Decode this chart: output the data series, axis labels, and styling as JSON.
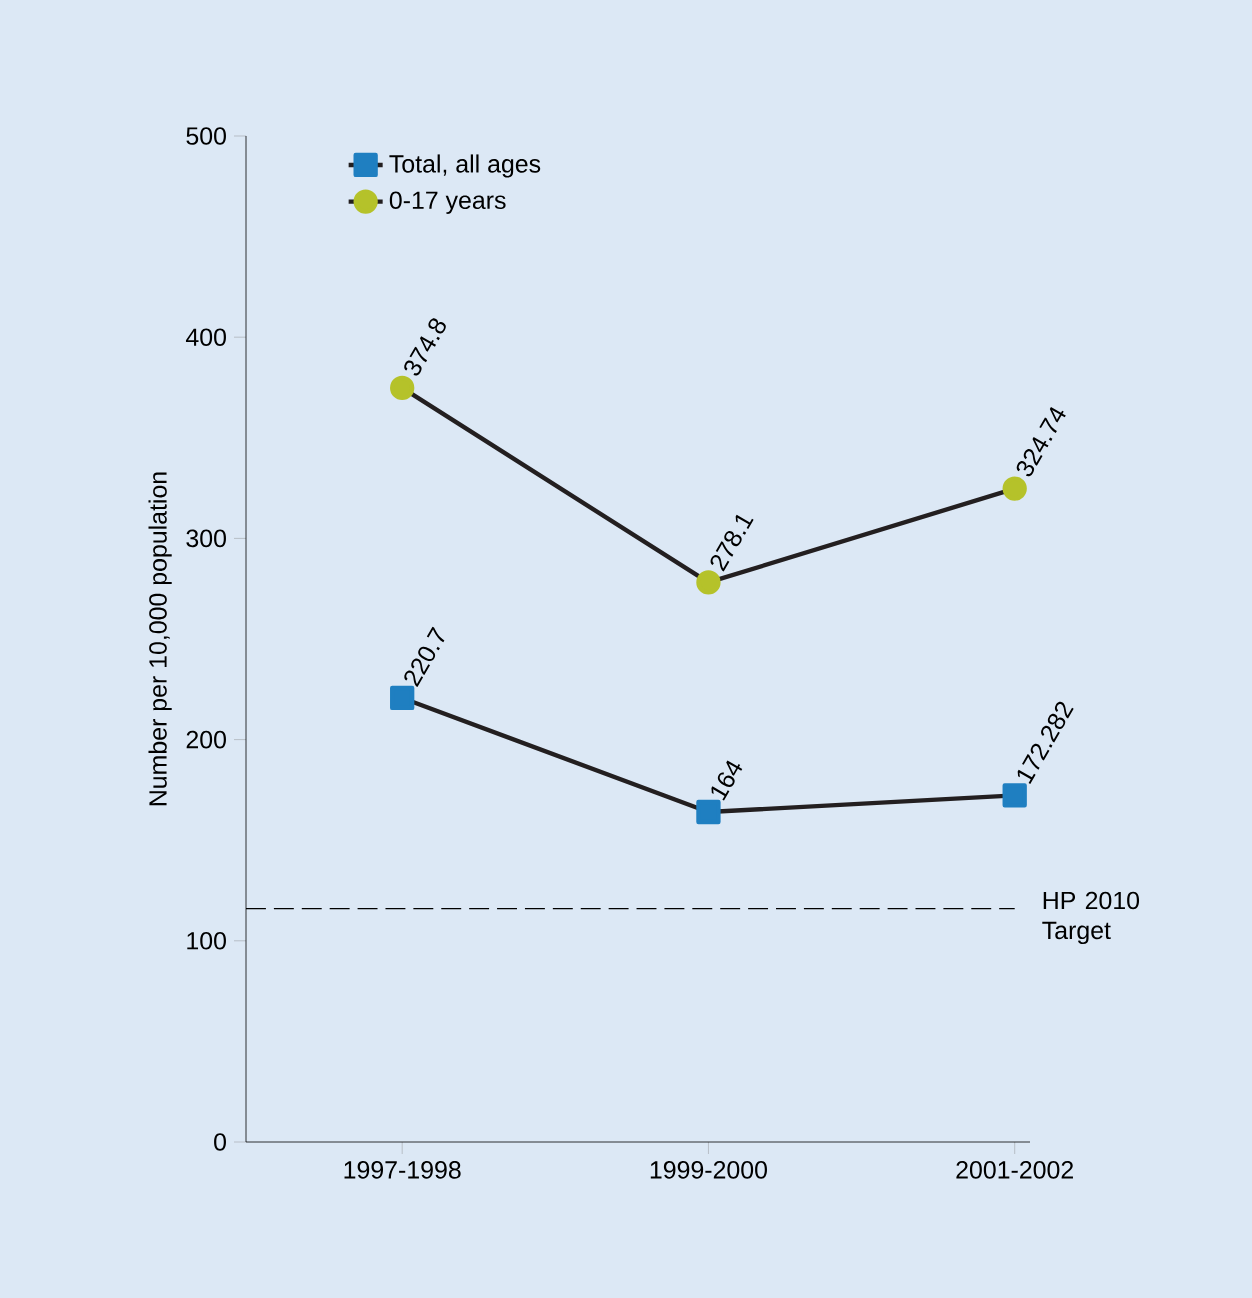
{
  "chart_data": {
    "type": "line",
    "ylabel": "Number per 10,000 population",
    "categories": [
      "1997-1998",
      "1999-2000",
      "2001-2002"
    ],
    "series": [
      {
        "name": "Total, all ages",
        "color": "#1f7fc1",
        "marker": "square",
        "values": [
          220.7,
          164,
          172.282
        ],
        "value_labels": [
          "220.7",
          "164",
          "172.282"
        ]
      },
      {
        "name": "0-17 years",
        "color": "#b5c22a",
        "marker": "circle",
        "values": [
          374.8,
          278.1,
          324.74
        ],
        "value_labels": [
          "374.8",
          "278.1",
          "324.74"
        ]
      }
    ],
    "ylim": [
      0,
      500
    ],
    "yticks": [
      0,
      100,
      200,
      300,
      400,
      500
    ],
    "ref_lines": [
      {
        "axis": "y",
        "value": 116,
        "label": "HP 2010 Target",
        "line_style": "dashed"
      }
    ],
    "legend": "top left",
    "grid": false,
    "line_style": "solid"
  }
}
